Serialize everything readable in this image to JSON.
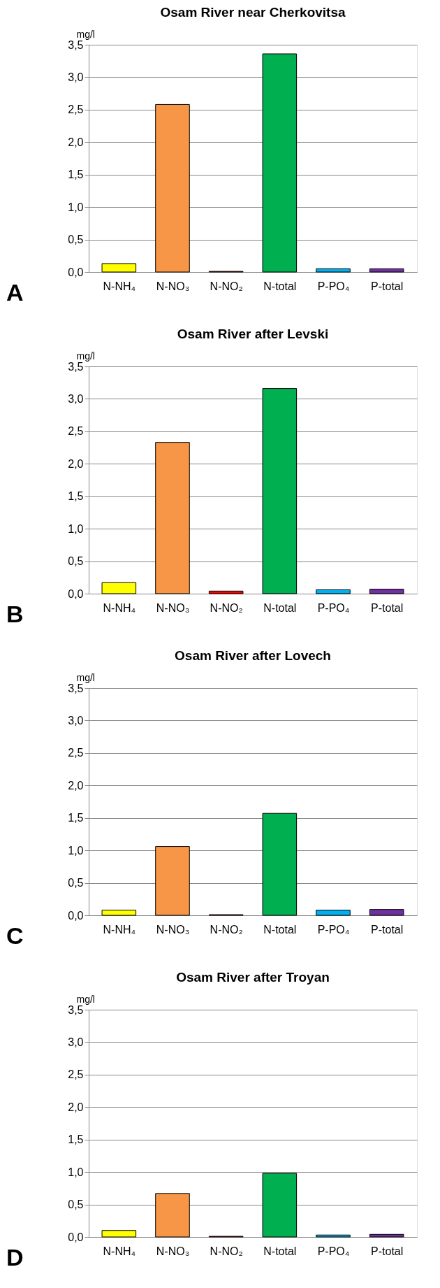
{
  "chart_data": [
    {
      "type": "bar",
      "title": "Osam River near Cherkovitsa",
      "ylabel": "mg/l",
      "annotations": [
        "A"
      ],
      "categories": [
        "N-NH₄",
        "N-NO₃",
        "N-NO₂",
        "N-total",
        "P-PO₄",
        "P-total"
      ],
      "values": [
        0.13,
        2.58,
        0.01,
        3.36,
        0.05,
        0.05
      ],
      "colors": [
        "#ffff00",
        "#f79646",
        "#c00000",
        "#00b050",
        "#00b0f0",
        "#7030a0"
      ],
      "ylim": [
        0,
        3.5
      ],
      "yticks": [
        {
          "value": 0,
          "label": "0,0"
        },
        {
          "value": 0.5,
          "label": "0,5"
        },
        {
          "value": 1,
          "label": "1,0"
        },
        {
          "value": 1.5,
          "label": "1,5"
        },
        {
          "value": 2,
          "label": "2,0"
        },
        {
          "value": 2.5,
          "label": "2,5"
        },
        {
          "value": 3,
          "label": "3,0"
        },
        {
          "value": 3.5,
          "label": "3,5"
        }
      ],
      "grid": "y",
      "legend": false
    },
    {
      "type": "bar",
      "title": "Osam River after Levski",
      "ylabel": "mg/l",
      "annotations": [
        "B"
      ],
      "categories": [
        "N-NH₄",
        "N-NO₃",
        "N-NO₂",
        "N-total",
        "P-PO₄",
        "P-total"
      ],
      "values": [
        0.17,
        2.33,
        0.04,
        3.16,
        0.06,
        0.07
      ],
      "colors": [
        "#ffff00",
        "#f79646",
        "#ff0000",
        "#00b050",
        "#00b0f0",
        "#7030a0"
      ],
      "ylim": [
        0,
        3.5
      ],
      "yticks": [
        {
          "value": 0,
          "label": "0,0"
        },
        {
          "value": 0.5,
          "label": "0,5"
        },
        {
          "value": 1,
          "label": "1,0"
        },
        {
          "value": 1.5,
          "label": "1,5"
        },
        {
          "value": 2,
          "label": "2,0"
        },
        {
          "value": 2.5,
          "label": "2,5"
        },
        {
          "value": 3,
          "label": "3,0"
        },
        {
          "value": 3.5,
          "label": "3,5"
        }
      ],
      "grid": "y",
      "legend": false
    },
    {
      "type": "bar",
      "title": "Osam River after Lovech",
      "ylabel": "mg/l",
      "annotations": [
        "C"
      ],
      "categories": [
        "N-NH₄",
        "N-NO₃",
        "N-NO₂",
        "N-total",
        "P-PO₄",
        "P-total"
      ],
      "values": [
        0.08,
        1.06,
        0.01,
        1.57,
        0.08,
        0.09
      ],
      "colors": [
        "#ffff00",
        "#f79646",
        "#c00000",
        "#00b050",
        "#00b0f0",
        "#7030a0"
      ],
      "ylim": [
        0,
        3.5
      ],
      "yticks": [
        {
          "value": 0,
          "label": "0,0"
        },
        {
          "value": 0.5,
          "label": "0,5"
        },
        {
          "value": 1,
          "label": "1,0"
        },
        {
          "value": 1.5,
          "label": "1,5"
        },
        {
          "value": 2,
          "label": "2,0"
        },
        {
          "value": 2.5,
          "label": "2,5"
        },
        {
          "value": 3,
          "label": "3,0"
        },
        {
          "value": 3.5,
          "label": "3,5"
        }
      ],
      "grid": "y",
      "legend": false
    },
    {
      "type": "bar",
      "title": "Osam River after Troyan",
      "ylabel": "mg/l",
      "annotations": [
        "D"
      ],
      "categories": [
        "N-NH₄",
        "N-NO₃",
        "N-NO₂",
        "N-total",
        "P-PO₄",
        "P-total"
      ],
      "values": [
        0.1,
        0.67,
        0.01,
        0.98,
        0.03,
        0.04
      ],
      "colors": [
        "#ffff00",
        "#f79646",
        "#c00000",
        "#00b050",
        "#00b0f0",
        "#7030a0"
      ],
      "ylim": [
        0,
        3.5
      ],
      "yticks": [
        {
          "value": 0,
          "label": "0,0"
        },
        {
          "value": 0.5,
          "label": "0,5"
        },
        {
          "value": 1,
          "label": "1,0"
        },
        {
          "value": 1.5,
          "label": "1,5"
        },
        {
          "value": 2,
          "label": "2,0"
        },
        {
          "value": 2.5,
          "label": "2,5"
        },
        {
          "value": 3,
          "label": "3,0"
        },
        {
          "value": 3.5,
          "label": "3,5"
        }
      ],
      "grid": "y",
      "legend": false
    }
  ]
}
